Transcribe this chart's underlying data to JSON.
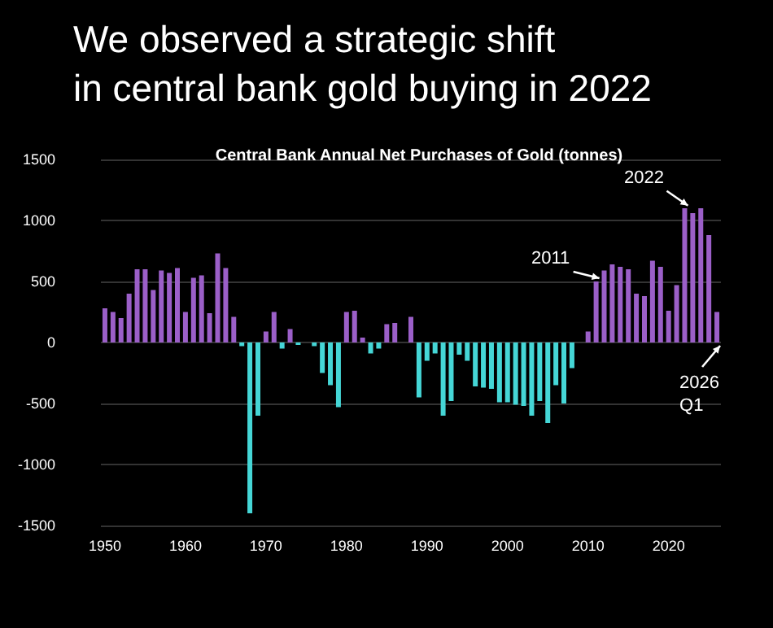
{
  "chart_data": {
    "type": "bar",
    "title": "We observed a strategic shift\nin central bank gold buying in 2022",
    "subtitle": "Central Bank Annual Net Purchases of Gold (tonnes)",
    "x": [
      1950,
      1951,
      1952,
      1953,
      1954,
      1955,
      1956,
      1957,
      1958,
      1959,
      1960,
      1961,
      1962,
      1963,
      1964,
      1965,
      1966,
      1967,
      1968,
      1969,
      1970,
      1971,
      1972,
      1973,
      1974,
      1975,
      1976,
      1977,
      1978,
      1979,
      1980,
      1981,
      1982,
      1983,
      1984,
      1985,
      1986,
      1987,
      1988,
      1989,
      1990,
      1991,
      1992,
      1993,
      1994,
      1995,
      1996,
      1997,
      1998,
      1999,
      2000,
      2001,
      2002,
      2003,
      2004,
      2005,
      2006,
      2007,
      2008,
      2009,
      2010,
      2011,
      2012,
      2013,
      2014,
      2015,
      2016,
      2017,
      2018,
      2019,
      2020,
      2021,
      2022,
      2023,
      2024,
      2025,
      2026
    ],
    "values": [
      280,
      250,
      200,
      400,
      600,
      600,
      430,
      590,
      570,
      610,
      250,
      530,
      550,
      240,
      730,
      610,
      210,
      -30,
      -1400,
      -600,
      90,
      250,
      -50,
      110,
      -20,
      0,
      -30,
      -250,
      -350,
      -530,
      250,
      260,
      40,
      -90,
      -50,
      150,
      160,
      0,
      210,
      -450,
      -150,
      -90,
      -600,
      -480,
      -100,
      -150,
      -360,
      -370,
      -380,
      -490,
      -490,
      -510,
      -520,
      -600,
      -480,
      -660,
      -350,
      -500,
      -210,
      0,
      90,
      500,
      590,
      640,
      620,
      600,
      400,
      380,
      670,
      620,
      260,
      470,
      1100,
      1060,
      1100,
      880,
      250
    ],
    "colors": [
      "#9b5fc8",
      "#9b5fc8",
      "#9b5fc8",
      "#9b5fc8",
      "#9b5fc8",
      "#9b5fc8",
      "#9b5fc8",
      "#9b5fc8",
      "#9b5fc8",
      "#9b5fc8",
      "#9b5fc8",
      "#9b5fc8",
      "#9b5fc8",
      "#9b5fc8",
      "#9b5fc8",
      "#9b5fc8",
      "#9b5fc8",
      "#45d6d6",
      "#45d6d6",
      "#45d6d6",
      "#9b5fc8",
      "#9b5fc8",
      "#45d6d6",
      "#9b5fc8",
      "#45d6d6",
      "#9b5fc8",
      "#45d6d6",
      "#45d6d6",
      "#45d6d6",
      "#45d6d6",
      "#9b5fc8",
      "#9b5fc8",
      "#9b5fc8",
      "#45d6d6",
      "#45d6d6",
      "#9b5fc8",
      "#9b5fc8",
      "#9b5fc8",
      "#9b5fc8",
      "#45d6d6",
      "#45d6d6",
      "#45d6d6",
      "#45d6d6",
      "#45d6d6",
      "#45d6d6",
      "#45d6d6",
      "#45d6d6",
      "#45d6d6",
      "#45d6d6",
      "#45d6d6",
      "#45d6d6",
      "#45d6d6",
      "#45d6d6",
      "#45d6d6",
      "#45d6d6",
      "#45d6d6",
      "#45d6d6",
      "#45d6d6",
      "#45d6d6",
      "#9b5fc8",
      "#9b5fc8",
      "#9b5fc8",
      "#9b5fc8",
      "#9b5fc8",
      "#9b5fc8",
      "#9b5fc8",
      "#9b5fc8",
      "#9b5fc8",
      "#9b5fc8",
      "#9b5fc8",
      "#9b5fc8",
      "#9b5fc8",
      "#9b5fc8",
      "#9b5fc8",
      "#9b5fc8",
      "#9b5fc8",
      "#9b5fc8"
    ],
    "xlim": [
      1949.5,
      2026.5
    ],
    "xticks": [
      1950,
      1960,
      1970,
      1980,
      1990,
      2000,
      2010,
      2020
    ],
    "ylim": [
      -1500,
      1500
    ],
    "yticks": [
      {
        "value": -1500,
        "label": "-1500"
      },
      {
        "value": -1000,
        "label": "-1000"
      },
      -500,
      0,
      500,
      {
        "value": 1000,
        "label": "1000"
      },
      {
        "value": 1500,
        "label": "1500"
      }
    ],
    "grid": "y",
    "annotations": [
      {
        "text": "2022",
        "x": 2022,
        "y": 1095
      },
      {
        "text": "2011",
        "x": 2011,
        "y": 500
      },
      {
        "text": "2026\nQ1",
        "x": 2026,
        "y": 0
      }
    ]
  }
}
